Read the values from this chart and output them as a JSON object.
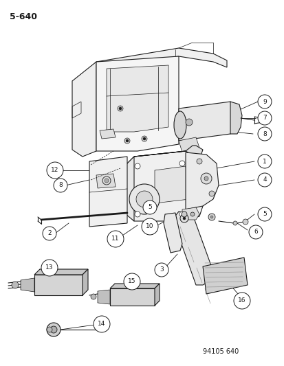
{
  "page_number": "5-640",
  "part_number": "94105 640",
  "bg": "#ffffff",
  "lc": "#1a1a1a",
  "fig_width": 4.14,
  "fig_height": 5.33,
  "dpi": 100
}
